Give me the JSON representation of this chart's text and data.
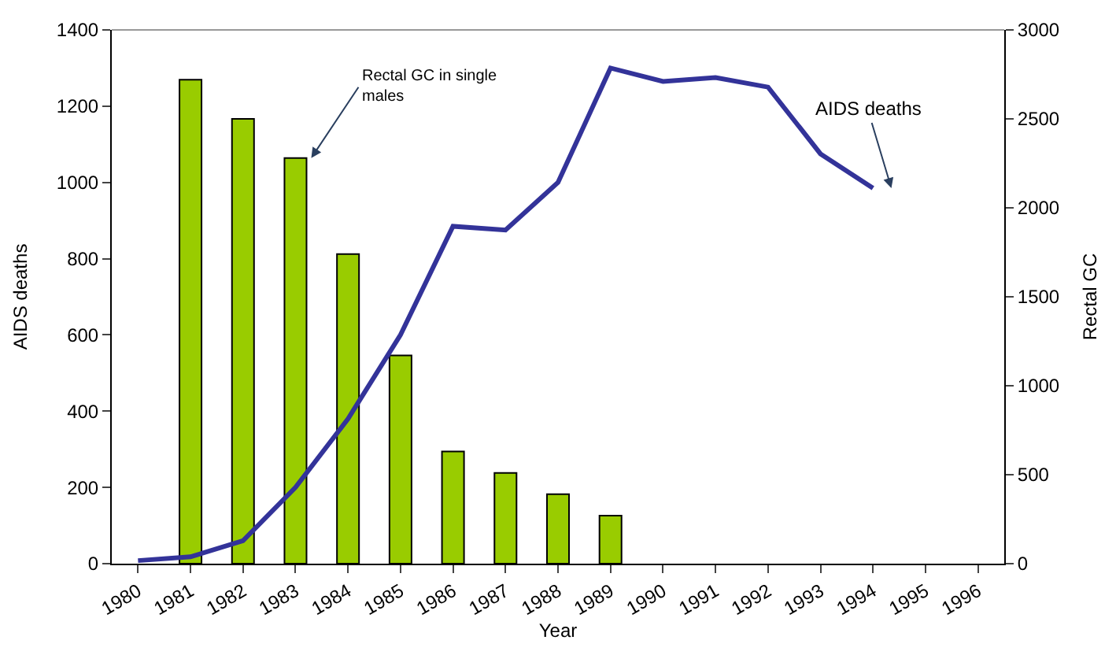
{
  "chart_data": {
    "type": "bar",
    "categories": [
      "1980",
      "1981",
      "1982",
      "1983",
      "1984",
      "1985",
      "1986",
      "1987",
      "1988",
      "1989",
      "1990",
      "1991",
      "1992",
      "1993",
      "1994",
      "1995",
      "1996"
    ],
    "series": [
      {
        "name": "AIDS deaths",
        "type": "line",
        "color": "#333399",
        "values": [
          8,
          18,
          60,
          200,
          380,
          600,
          885,
          875,
          1000,
          1300,
          1265,
          1275,
          1250,
          1075,
          985,
          null,
          null
        ]
      },
      {
        "name": "Rectal GC in single males",
        "axis": "y2",
        "color": "#99cc00",
        "values": [
          null,
          2720,
          2500,
          2280,
          1740,
          1170,
          630,
          510,
          390,
          270,
          null,
          null,
          null,
          null,
          null,
          null,
          null
        ]
      }
    ],
    "xlabel": "Year",
    "ylabel": "AIDS deaths",
    "y2label": "Rectal GC",
    "ylim": [
      0,
      1400
    ],
    "yticks": [
      0,
      200,
      400,
      600,
      800,
      1000,
      1200,
      1400
    ],
    "y2lim": [
      0,
      3000
    ],
    "y2ticks": [
      0,
      500,
      1000,
      1500,
      2000,
      2500,
      3000
    ],
    "legend": false,
    "marker": "none",
    "line_style": "solid"
  }
}
